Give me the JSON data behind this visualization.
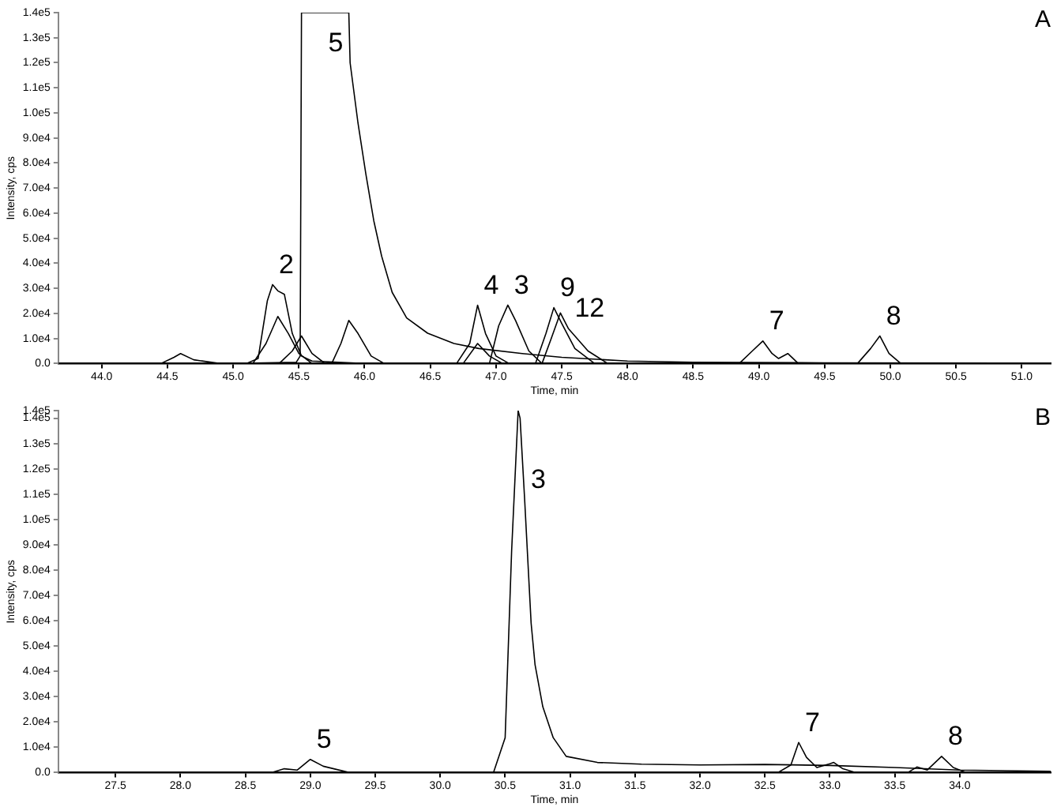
{
  "chart_data": [
    {
      "type": "line",
      "title": "A",
      "xlabel": "Time, min",
      "ylabel": "Intensity, cps",
      "xlim": [
        43.67,
        51.22
      ],
      "ylim": [
        0,
        140000
      ],
      "xticks": [
        {
          "value": 44,
          "label": "44.0"
        },
        44.5,
        {
          "value": 45,
          "label": "45.0"
        },
        45.5,
        {
          "value": 46,
          "label": "46.0"
        },
        46.5,
        {
          "value": 47,
          "label": "47.0"
        },
        47.5,
        {
          "value": 48,
          "label": "48.0"
        },
        48.5,
        {
          "value": 49,
          "label": "49.0"
        },
        49.5,
        {
          "value": 50,
          "label": "50.0"
        },
        50.5,
        {
          "value": 51,
          "label": "51.0"
        }
      ],
      "yticks": [
        {
          "value": 0,
          "label": "0.0"
        },
        {
          "value": 10000,
          "label": "1.0e4"
        },
        {
          "value": 20000,
          "label": "2.0e4"
        },
        {
          "value": 30000,
          "label": "3.0e4"
        },
        {
          "value": 40000,
          "label": "4.0e4"
        },
        {
          "value": 50000,
          "label": "5.0e4"
        },
        {
          "value": 60000,
          "label": "6.0e4"
        },
        {
          "value": 70000,
          "label": "7.0e4"
        },
        {
          "value": 80000,
          "label": "8.0e4"
        },
        {
          "value": 90000,
          "label": "9.0e4"
        },
        {
          "value": 100000,
          "label": "1.0e5"
        },
        {
          "value": 110000,
          "label": "1.1e5"
        },
        {
          "value": 120000,
          "label": "1.2e5"
        },
        {
          "value": 130000,
          "label": "1.3e5"
        },
        {
          "value": 140000,
          "label": "1.4e5"
        }
      ],
      "grid": false,
      "legend": false,
      "marker": "none",
      "series": [
        {
          "color": "#000000",
          "x": [
            43.67,
            44.5,
            45.0,
            45.48,
            45.51,
            45.52,
            45.88,
            45.89,
            45.95,
            46.01,
            46.07,
            46.13,
            46.21,
            46.32,
            46.48,
            46.68,
            46.87,
            47.2,
            47.5,
            48.0,
            48.5,
            49.5,
            51.22
          ],
          "values": [
            0,
            0,
            0,
            500,
            3000,
            140000,
            140000,
            120000,
            95900,
            75500,
            57000,
            42800,
            28400,
            18200,
            12100,
            8000,
            6000,
            4000,
            2500,
            1000,
            500,
            300,
            200
          ]
        },
        {
          "color": "#000000",
          "x": [
            43.67,
            45.1,
            45.19,
            45.26,
            45.3,
            45.34,
            45.39,
            45.45,
            45.52,
            45.6,
            46.0,
            51.22
          ],
          "values": [
            0,
            0,
            2000,
            25000,
            31500,
            29000,
            27600,
            12000,
            3000,
            1000,
            0,
            0
          ]
        },
        {
          "color": "#000000",
          "x": [
            45.15,
            45.25,
            45.34,
            45.42,
            45.5,
            45.6
          ],
          "values": [
            0,
            8000,
            18800,
            12000,
            4000,
            0
          ]
        },
        {
          "color": "#000000",
          "x": [
            45.35,
            45.45,
            45.52,
            45.6,
            45.7
          ],
          "values": [
            0,
            5000,
            11000,
            4000,
            0
          ]
        },
        {
          "color": "#000000",
          "x": [
            45.75,
            45.82,
            45.88,
            45.95,
            46.05,
            46.15
          ],
          "values": [
            0,
            8000,
            17200,
            12000,
            3000,
            0
          ]
        },
        {
          "color": "#000000",
          "x": [
            44.45,
            44.55,
            44.6,
            44.7,
            44.9
          ],
          "values": [
            0,
            2500,
            4000,
            1500,
            0
          ]
        },
        {
          "color": "#000000",
          "x": [
            46.7,
            46.8,
            46.86,
            46.92,
            47.0,
            47.1
          ],
          "values": [
            0,
            8000,
            23300,
            12000,
            3000,
            0
          ]
        },
        {
          "color": "#000000",
          "x": [
            46.75,
            46.86,
            46.95,
            47.05
          ],
          "values": [
            0,
            8000,
            3000,
            0
          ]
        },
        {
          "color": "#000000",
          "x": [
            46.95,
            47.02,
            47.09,
            47.15,
            47.25,
            47.35
          ],
          "values": [
            0,
            15000,
            23300,
            17000,
            5000,
            0
          ]
        },
        {
          "color": "#000000",
          "x": [
            47.3,
            47.38,
            47.44,
            47.5,
            47.6,
            47.75
          ],
          "values": [
            0,
            12000,
            22300,
            16000,
            6000,
            0
          ]
        },
        {
          "color": "#000000",
          "x": [
            47.35,
            47.42,
            47.49,
            47.55,
            47.7,
            47.85
          ],
          "values": [
            0,
            10000,
            20200,
            14000,
            5000,
            0
          ]
        },
        {
          "color": "#000000",
          "x": [
            48.85,
            48.95,
            49.03,
            49.1,
            49.15,
            49.22,
            49.3
          ],
          "values": [
            0,
            5000,
            9000,
            4000,
            2000,
            4000,
            0
          ]
        },
        {
          "color": "#000000",
          "x": [
            49.75,
            49.85,
            49.92,
            49.99,
            50.08
          ],
          "values": [
            0,
            6000,
            11000,
            4000,
            0
          ]
        }
      ],
      "annotations": [
        {
          "text": "5",
          "x": 45.7,
          "y": 140000
        },
        {
          "text": "2",
          "x": 45.3,
          "y": 31500
        },
        {
          "text": "4",
          "x": 46.86,
          "y": 23300
        },
        {
          "text": "3",
          "x": 47.09,
          "y": 23300
        },
        {
          "text": "9",
          "x": 47.44,
          "y": 22300
        },
        {
          "text": "12",
          "x": 47.55,
          "y": 14000
        },
        {
          "text": "7",
          "x": 49.03,
          "y": 9000
        },
        {
          "text": "8",
          "x": 49.92,
          "y": 11000
        }
      ]
    },
    {
      "type": "line",
      "title": "B",
      "xlabel": "Time, min",
      "ylabel": "Intensity, cps",
      "xlim": [
        27.06,
        34.7
      ],
      "ylim": [
        0,
        143000
      ],
      "xticks": [
        27.5,
        {
          "value": 28,
          "label": "28.0"
        },
        28.5,
        {
          "value": 29,
          "label": "29.0"
        },
        29.5,
        {
          "value": 30,
          "label": "30.0"
        },
        30.5,
        {
          "value": 31,
          "label": "31.0"
        },
        31.5,
        {
          "value": 32,
          "label": "32.0"
        },
        32.5,
        {
          "value": 33,
          "label": "33.0"
        },
        33.5,
        {
          "value": 34,
          "label": "34.0"
        }
      ],
      "yticks": [
        {
          "value": 0,
          "label": "0.0"
        },
        {
          "value": 10000,
          "label": "1.0e4"
        },
        {
          "value": 20000,
          "label": "2.0e4"
        },
        {
          "value": 30000,
          "label": "3.0e4"
        },
        {
          "value": 40000,
          "label": "4.0e4"
        },
        {
          "value": 50000,
          "label": "5.0e4"
        },
        {
          "value": 60000,
          "label": "6.0e4"
        },
        {
          "value": 70000,
          "label": "7.0e4"
        },
        {
          "value": 80000,
          "label": "8.0e4"
        },
        {
          "value": 90000,
          "label": "9.0e4"
        },
        {
          "value": 100000,
          "label": "1.0e5"
        },
        {
          "value": 110000,
          "label": "1.1e5"
        },
        {
          "value": 120000,
          "label": "1.2e5"
        },
        {
          "value": 130000,
          "label": "1.3e5"
        },
        {
          "value": 140000,
          "label": "1.4e5"
        },
        {
          "value": 143000,
          "label": "1.4e5"
        }
      ],
      "grid": false,
      "legend": false,
      "marker": "none",
      "series": [
        {
          "color": "#000000",
          "x": [
            27.06,
            28.0,
            29.0,
            30.0,
            30.41,
            30.5,
            30.55,
            30.6,
            30.615,
            30.65,
            30.7,
            30.73,
            30.79,
            30.87,
            30.97,
            31.21,
            31.55,
            32.0,
            32.5,
            33.0,
            33.5,
            34.0,
            34.7
          ],
          "values": [
            0,
            0,
            0,
            0,
            0,
            13800,
            87700,
            143000,
            140000,
            108000,
            59000,
            42700,
            26000,
            13800,
            6400,
            4000,
            3300,
            3000,
            3200,
            2800,
            2000,
            1000,
            500
          ]
        },
        {
          "color": "#000000",
          "x": [
            28.7,
            28.8,
            28.9,
            29.0,
            29.1,
            29.3
          ],
          "values": [
            0,
            1500,
            1000,
            5200,
            2500,
            0
          ]
        },
        {
          "color": "#000000",
          "x": [
            32.6,
            32.7,
            32.76,
            32.82,
            32.9,
            33.0,
            33.03,
            33.1,
            33.2
          ],
          "values": [
            0,
            3000,
            11900,
            6000,
            2000,
            3500,
            4000,
            1500,
            0
          ]
        },
        {
          "color": "#000000",
          "x": [
            33.6,
            33.67,
            33.75,
            33.86,
            33.95,
            34.05
          ],
          "values": [
            0,
            2200,
            1000,
            6400,
            2000,
            0
          ]
        }
      ],
      "annotations": [
        {
          "text": "3",
          "x": 30.65,
          "y": 108000
        },
        {
          "text": "5",
          "x": 29.0,
          "y": 5200
        },
        {
          "text": "7",
          "x": 32.76,
          "y": 11900
        },
        {
          "text": "8",
          "x": 33.86,
          "y": 6400
        }
      ]
    }
  ]
}
